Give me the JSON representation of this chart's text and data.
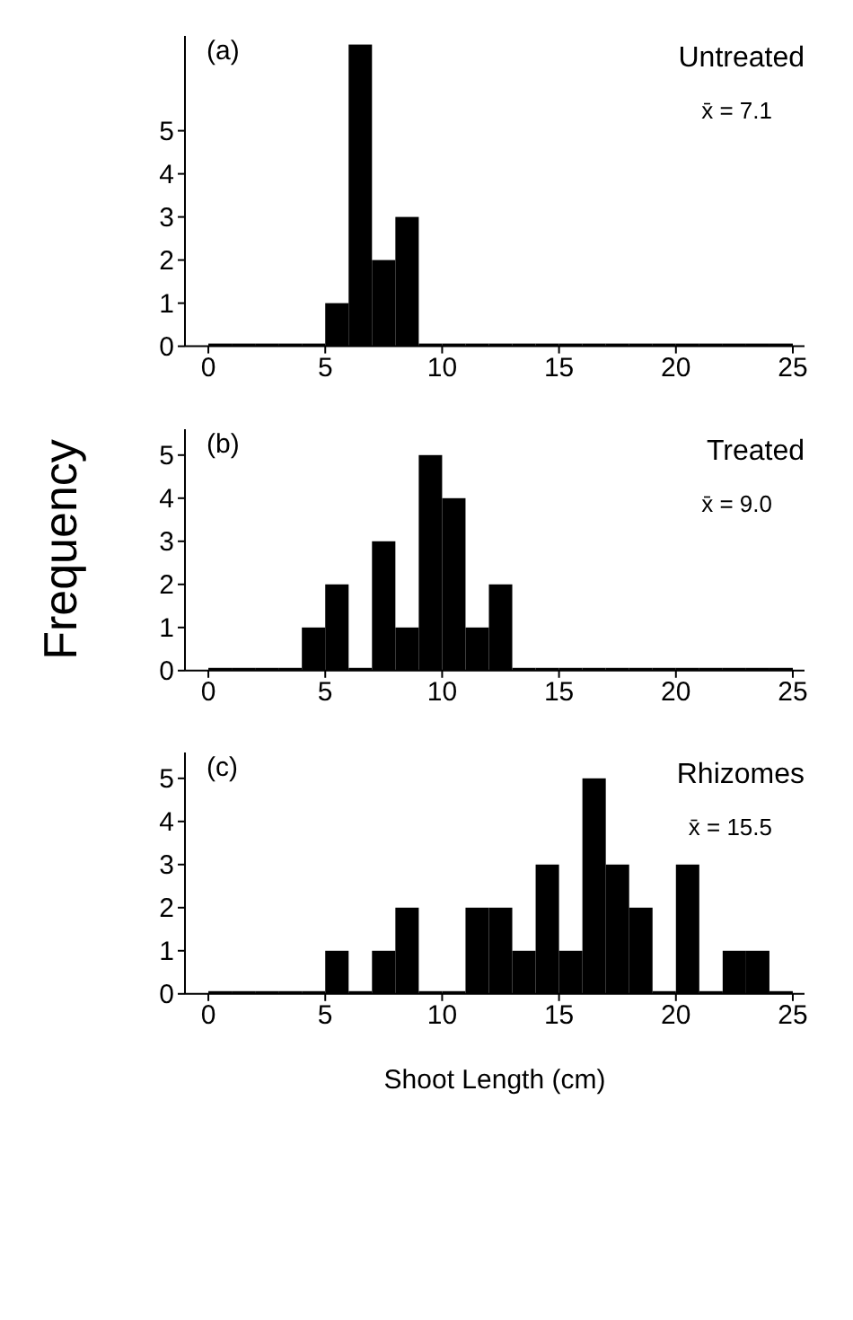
{
  "chart_data": [
    {
      "type": "histogram",
      "title": "Untreated",
      "annotations": [
        "(a)",
        "x̄ = 7.1"
      ],
      "bins": [
        0,
        1,
        2,
        3,
        4,
        5,
        6,
        7,
        8,
        9,
        10,
        11,
        12,
        13,
        14,
        15,
        16,
        17,
        18,
        19,
        20,
        21,
        22,
        23,
        24,
        25
      ],
      "values": [
        0,
        0,
        0,
        0,
        0,
        1,
        7,
        2,
        3,
        0,
        0,
        0,
        0,
        0,
        0,
        0,
        0,
        0,
        0,
        0,
        0,
        0,
        0,
        0,
        0
      ],
      "color": "#000000",
      "xlim": [
        -1,
        25.5
      ],
      "xticks": [
        0,
        5,
        10,
        15,
        20,
        25
      ],
      "ylim": [
        0,
        7.2
      ],
      "yticks": [
        0,
        1,
        2,
        3,
        4,
        5
      ],
      "grid": false,
      "legend": false
    },
    {
      "type": "histogram",
      "title": "Treated",
      "annotations": [
        "(b)",
        "x̄ = 9.0"
      ],
      "ylabel": "Frequency",
      "bins": [
        0,
        1,
        2,
        3,
        4,
        5,
        6,
        7,
        8,
        9,
        10,
        11,
        12,
        13,
        14,
        15,
        16,
        17,
        18,
        19,
        20,
        21,
        22,
        23,
        24,
        25
      ],
      "values": [
        0,
        0,
        0,
        0,
        1,
        2,
        0,
        3,
        1,
        5,
        4,
        1,
        2,
        0,
        0,
        0,
        0,
        0,
        0,
        0,
        0,
        0,
        0,
        0,
        0
      ],
      "color": "#000000",
      "xlim": [
        -1,
        25.5
      ],
      "xticks": [
        0,
        5,
        10,
        15,
        20,
        25
      ],
      "ylim": [
        0,
        5.6
      ],
      "yticks": [
        0,
        1,
        2,
        3,
        4,
        5
      ],
      "grid": false,
      "legend": false
    },
    {
      "type": "histogram",
      "title": "Rhizomes",
      "annotations": [
        "(c)",
        "x̄ = 15.5"
      ],
      "xlabel": "Shoot Length (cm)",
      "bins": [
        0,
        1,
        2,
        3,
        4,
        5,
        6,
        7,
        8,
        9,
        10,
        11,
        12,
        13,
        14,
        15,
        16,
        17,
        18,
        19,
        20,
        21,
        22,
        23,
        24,
        25
      ],
      "values": [
        0,
        0,
        0,
        0,
        0,
        1,
        0,
        1,
        2,
        0,
        0,
        2,
        2,
        1,
        3,
        1,
        5,
        3,
        2,
        0,
        3,
        0,
        1,
        1,
        0
      ],
      "color": "#000000",
      "xlim": [
        -1,
        25.5
      ],
      "xticks": [
        0,
        5,
        10,
        15,
        20,
        25
      ],
      "ylim": [
        0,
        5.6
      ],
      "yticks": [
        0,
        1,
        2,
        3,
        4,
        5
      ],
      "grid": false,
      "legend": false
    }
  ]
}
